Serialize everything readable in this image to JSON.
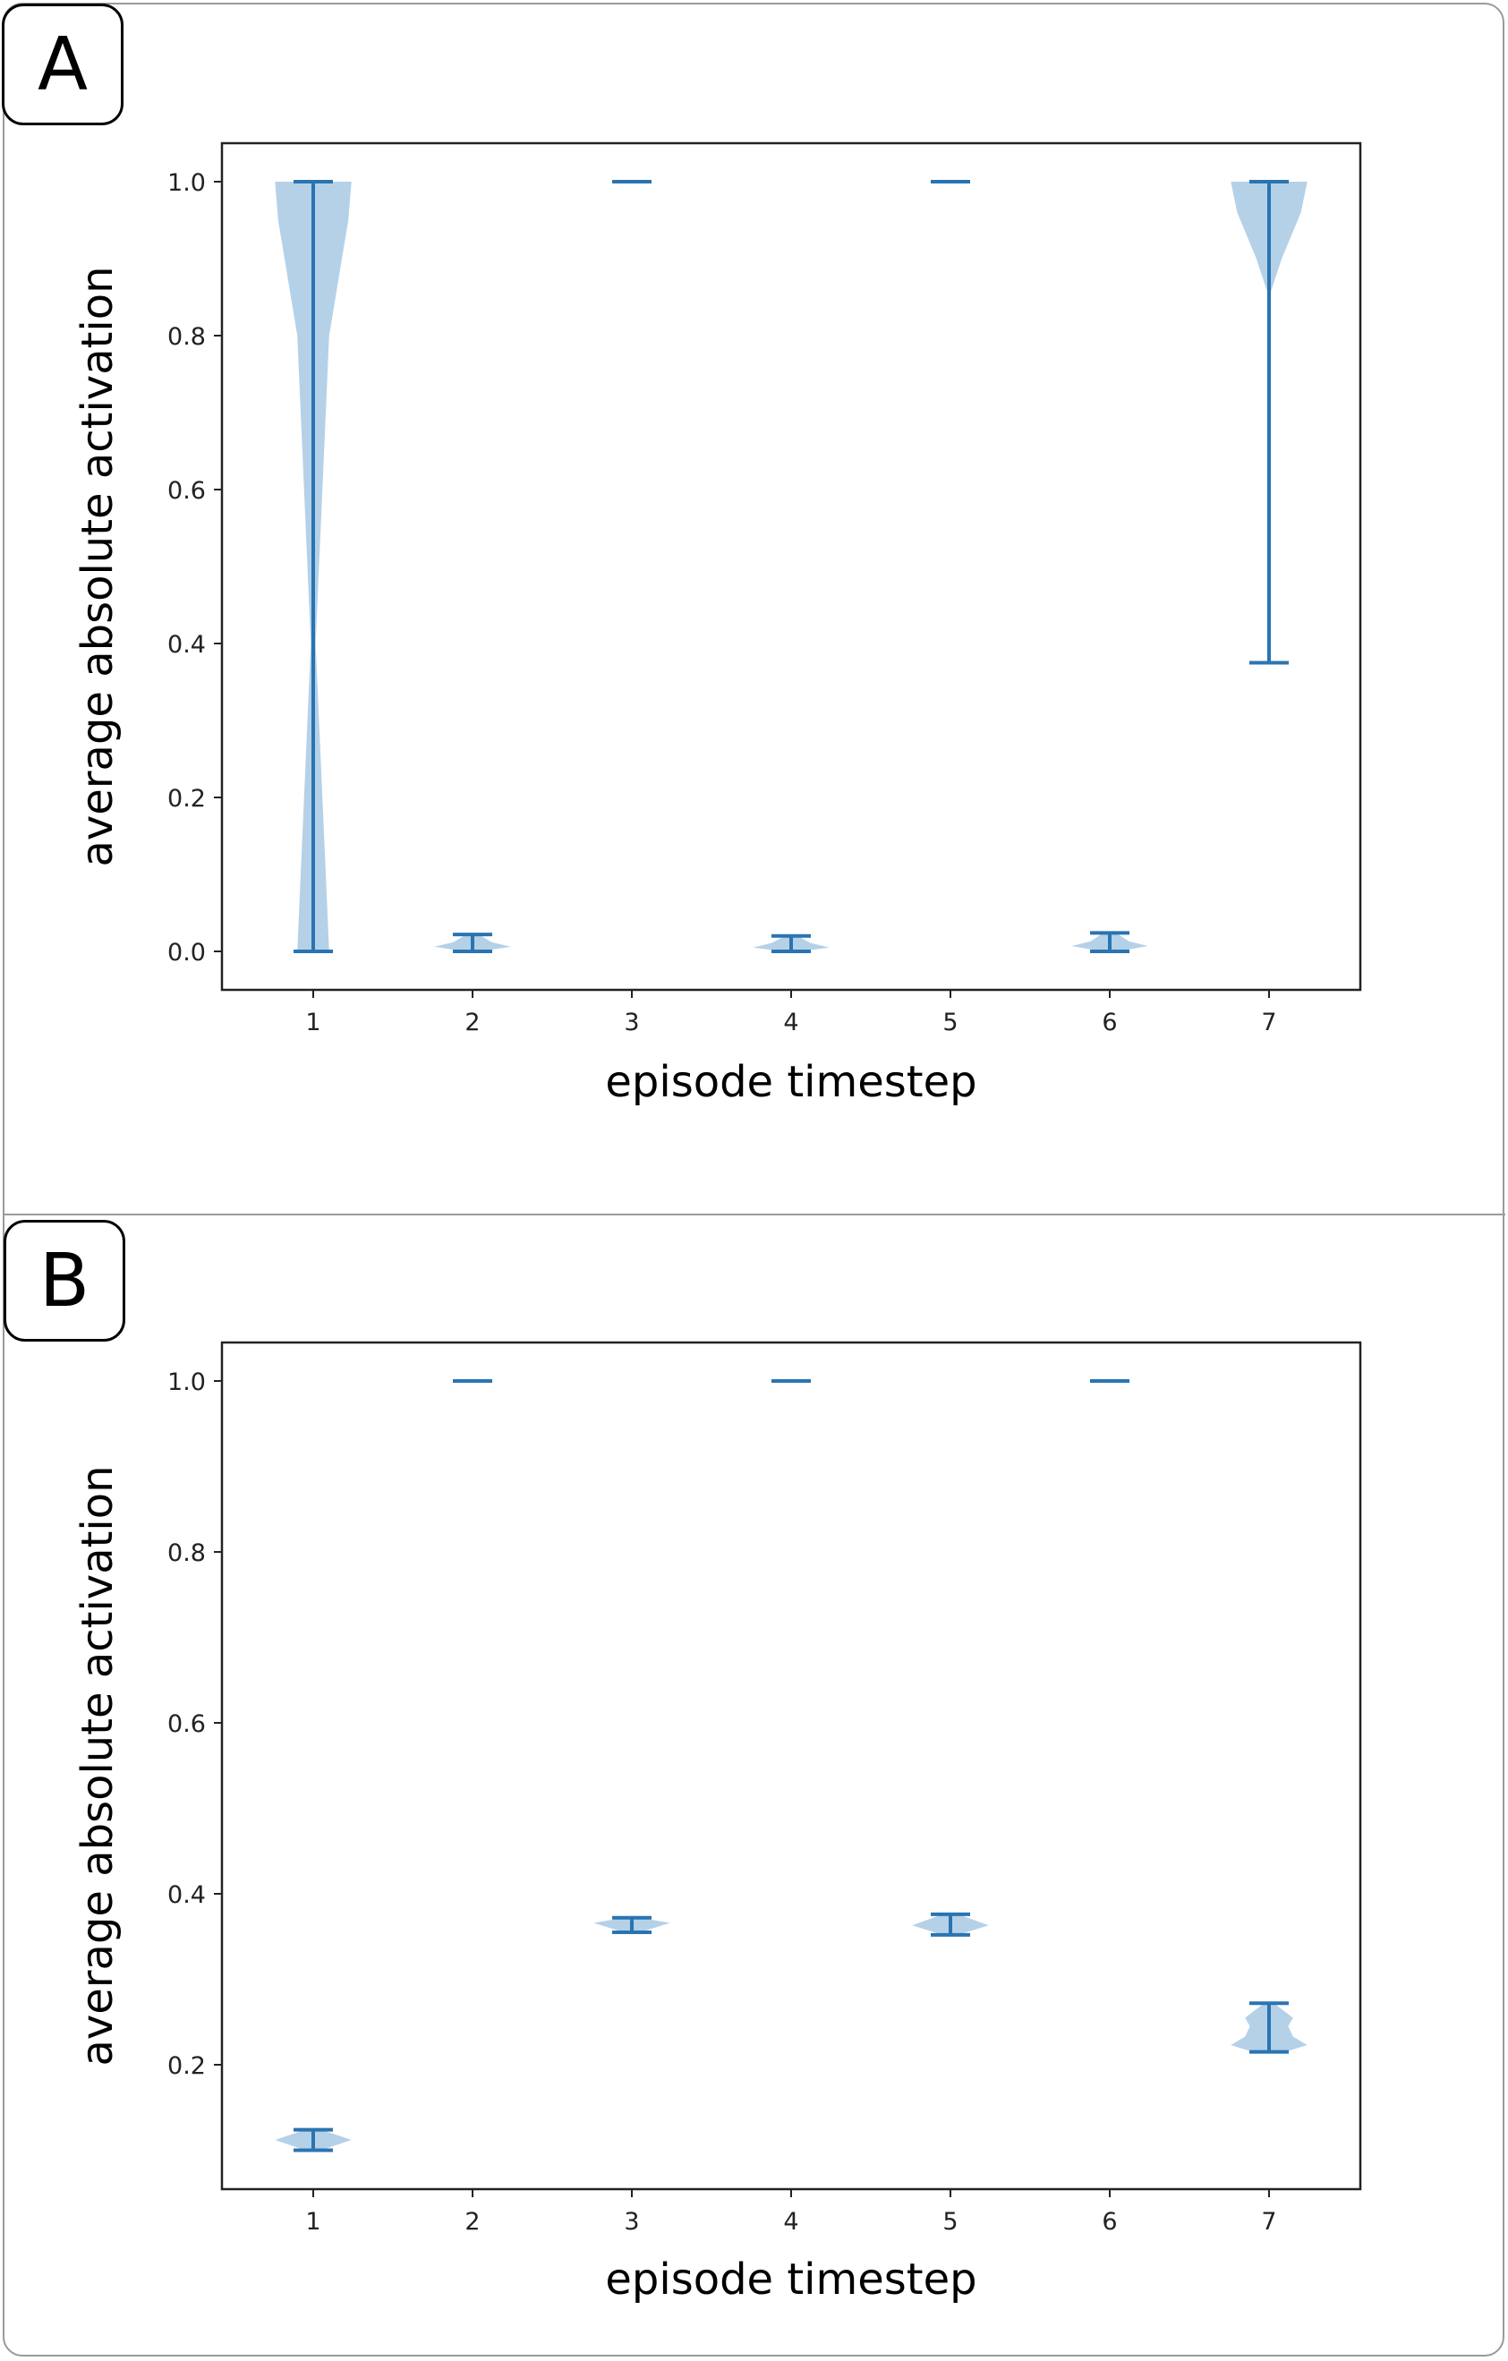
{
  "panels": [
    {
      "label": "A"
    },
    {
      "label": "B"
    }
  ],
  "colors": {
    "line": "#2a74b2",
    "fill": "#b5d1e8",
    "axis": "#222222"
  },
  "chart_data": [
    {
      "type": "violin",
      "panel": "A",
      "xlabel": "episode timestep",
      "ylabel": "average absolute activation",
      "x_ticks": [
        1,
        2,
        3,
        4,
        5,
        6,
        7
      ],
      "y_ticks": [
        0.0,
        0.2,
        0.4,
        0.6,
        0.8,
        1.0
      ],
      "y_tick_labels": [
        "0.0",
        "0.2",
        "0.4",
        "0.6",
        "0.8",
        "1.0"
      ],
      "ylim": [
        -0.05,
        1.05
      ],
      "violins": [
        {
          "x": 1,
          "min": 0.0,
          "max": 1.0,
          "profile": [
            [
              0.0,
              0.1
            ],
            [
              0.4,
              0.015
            ],
            [
              0.8,
              0.1
            ],
            [
              0.95,
              0.22
            ],
            [
              1.0,
              0.24
            ]
          ]
        },
        {
          "x": 2,
          "min": 0.0,
          "max": 0.022,
          "profile": [
            [
              0.0,
              0.05
            ],
            [
              0.006,
              0.24
            ],
            [
              0.012,
              0.12
            ],
            [
              0.022,
              0.04
            ]
          ]
        },
        {
          "x": 3,
          "min": 1.0,
          "max": 1.0,
          "profile": []
        },
        {
          "x": 4,
          "min": 0.0,
          "max": 0.02,
          "profile": [
            [
              0.0,
              0.05
            ],
            [
              0.005,
              0.24
            ],
            [
              0.011,
              0.12
            ],
            [
              0.02,
              0.04
            ]
          ]
        },
        {
          "x": 5,
          "min": 1.0,
          "max": 1.0,
          "profile": []
        },
        {
          "x": 6,
          "min": 0.0,
          "max": 0.024,
          "profile": [
            [
              0.0,
              0.05
            ],
            [
              0.007,
              0.24
            ],
            [
              0.013,
              0.12
            ],
            [
              0.024,
              0.04
            ]
          ]
        },
        {
          "x": 7,
          "min": 0.375,
          "max": 1.0,
          "profile": [
            [
              0.85,
              0.0
            ],
            [
              0.9,
              0.08
            ],
            [
              0.96,
              0.2
            ],
            [
              1.0,
              0.24
            ]
          ]
        }
      ]
    },
    {
      "type": "violin",
      "panel": "B",
      "xlabel": "episode timestep",
      "ylabel": "average absolute activation",
      "x_ticks": [
        1,
        2,
        3,
        4,
        5,
        6,
        7
      ],
      "y_ticks": [
        0.2,
        0.4,
        0.6,
        0.8,
        1.0
      ],
      "y_tick_labels": [
        "0.2",
        "0.4",
        "0.6",
        "0.8",
        "1.0"
      ],
      "ylim": [
        0.067,
        1.048
      ],
      "violins": [
        {
          "x": 1,
          "min": 0.1,
          "max": 0.124,
          "profile": [
            [
              0.1,
              0.05
            ],
            [
              0.112,
              0.24
            ],
            [
              0.124,
              0.05
            ]
          ]
        },
        {
          "x": 2,
          "min": 1.0,
          "max": 1.0,
          "profile": []
        },
        {
          "x": 3,
          "min": 0.355,
          "max": 0.372,
          "profile": [
            [
              0.355,
              0.05
            ],
            [
              0.366,
              0.24
            ],
            [
              0.372,
              0.05
            ]
          ]
        },
        {
          "x": 4,
          "min": 1.0,
          "max": 1.0,
          "profile": []
        },
        {
          "x": 5,
          "min": 0.352,
          "max": 0.376,
          "profile": [
            [
              0.352,
              0.05
            ],
            [
              0.363,
              0.24
            ],
            [
              0.376,
              0.05
            ]
          ]
        },
        {
          "x": 6,
          "min": 1.0,
          "max": 1.0,
          "profile": []
        },
        {
          "x": 7,
          "min": 0.215,
          "max": 0.272,
          "profile": [
            [
              0.215,
              0.1
            ],
            [
              0.223,
              0.24
            ],
            [
              0.233,
              0.15
            ],
            [
              0.245,
              0.12
            ],
            [
              0.255,
              0.15
            ],
            [
              0.265,
              0.08
            ],
            [
              0.272,
              0.03
            ]
          ]
        }
      ]
    }
  ]
}
